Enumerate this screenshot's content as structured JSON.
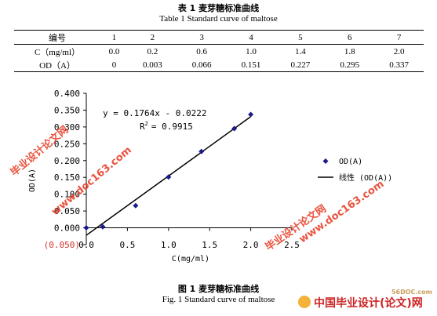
{
  "table": {
    "caption_cn": "表 1   麦芽糖标准曲线",
    "caption_en": "Table 1    Standard curve of maltose",
    "header": [
      "编号",
      "1",
      "2",
      "3",
      "4",
      "5",
      "6",
      "7"
    ],
    "rows": [
      [
        "C（mg/ml）",
        "0.0",
        "0.2",
        "0.6",
        "1.0",
        "1.4",
        "1.8",
        "2.0"
      ],
      [
        "OD（A）",
        "0",
        "0.003",
        "0.066",
        "0.151",
        "0.227",
        "0.295",
        "0.337"
      ]
    ]
  },
  "chart_data": {
    "type": "scatter",
    "xlabel": "C(mg/ml)",
    "ylabel": "OD(A)",
    "xlim": [
      0,
      2.5
    ],
    "ylim": [
      -0.05,
      0.4
    ],
    "x_ticks": [
      "0.0",
      "0.5",
      "1.0",
      "1.5",
      "2.0",
      "2.5"
    ],
    "y_ticks": [
      "(0.050)",
      "0.000",
      "0.050",
      "0.100",
      "0.150",
      "0.200",
      "0.250",
      "0.300",
      "0.350",
      "0.400"
    ],
    "series": [
      {
        "name": "OD(A)",
        "x": [
          0.0,
          0.2,
          0.6,
          1.0,
          1.4,
          1.8,
          2.0
        ],
        "y": [
          0.0,
          0.003,
          0.066,
          0.151,
          0.227,
          0.295,
          0.337
        ],
        "color": "#1a1a8c"
      }
    ],
    "trendline": {
      "name": "线性 (OD(A))",
      "slope": 0.1764,
      "intercept": -0.0222,
      "x_range": [
        0.0,
        2.0
      ],
      "equation": "y = 0.1764x - 0.0222",
      "r2_label": "R",
      "r2_value": "= 0.9915"
    },
    "legend_position": "right",
    "grid": false
  },
  "figure": {
    "caption_cn": "图 1   麦芽糖标准曲线",
    "caption_en": "Fig. 1    Standard curve of maltose"
  },
  "watermarks": {
    "site": "www.doc163.com",
    "name": "毕业设计论文网"
  },
  "logo": {
    "site": "56DOC.com",
    "name": "中国毕业设计(论文)网"
  }
}
